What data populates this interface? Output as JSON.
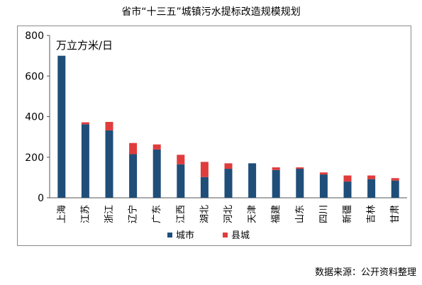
{
  "title": "省市“十三五”城镇污水提标改造规模规划",
  "source": "数据来源：公开资料整理",
  "chart_data": {
    "type": "bar",
    "stacked": true,
    "unit_label": "万立方米/日",
    "categories": [
      "上海",
      "江苏",
      "浙江",
      "辽宁",
      "广东",
      "江西",
      "湖北",
      "河北",
      "天津",
      "福建",
      "山东",
      "四川",
      "新疆",
      "吉林",
      "甘肃"
    ],
    "series": [
      {
        "name": "城市",
        "color": "#1f4e79",
        "values": [
          700,
          362,
          332,
          215,
          238,
          165,
          102,
          143,
          170,
          137,
          143,
          115,
          80,
          92,
          85
        ]
      },
      {
        "name": "县城",
        "color": "#e03c3c",
        "values": [
          0,
          10,
          42,
          55,
          25,
          47,
          75,
          27,
          0,
          13,
          7,
          10,
          30,
          18,
          12
        ]
      }
    ],
    "ylim": [
      0,
      800
    ],
    "yticks": [
      0,
      200,
      400,
      600,
      800
    ],
    "legend_position": "bottom",
    "grid": false
  }
}
